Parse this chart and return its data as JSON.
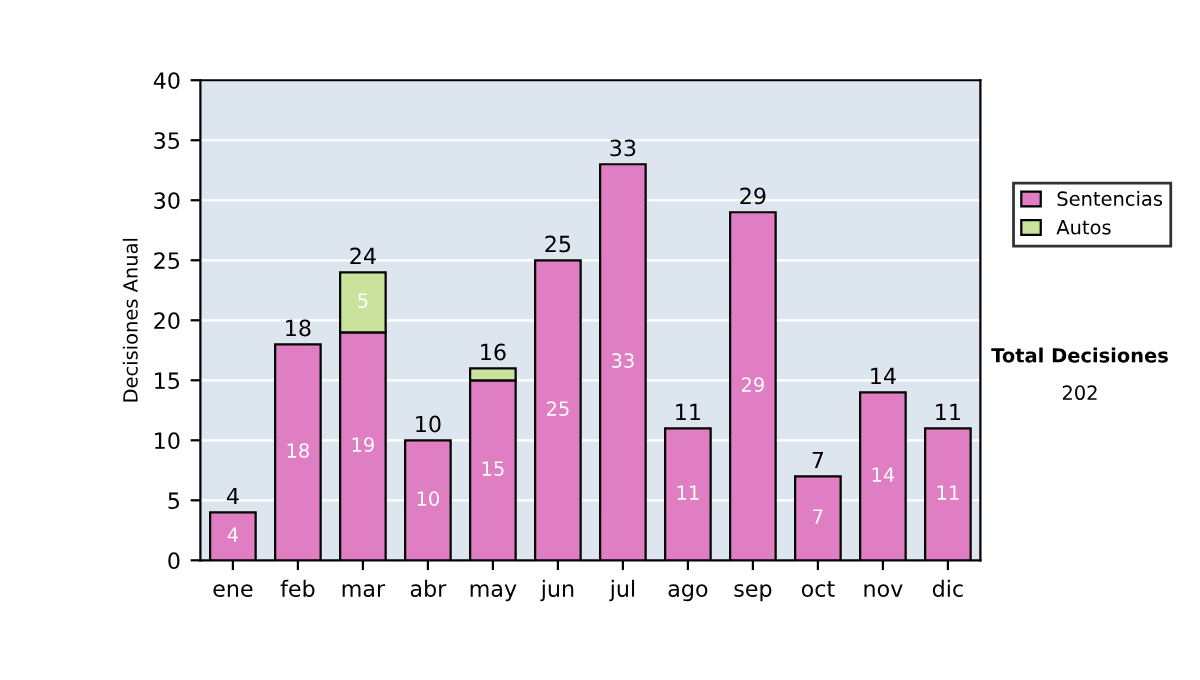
{
  "chart_data": {
    "type": "bar",
    "stacked": true,
    "ylabel": "Decisiones Anual",
    "categories": [
      "ene",
      "feb",
      "mar",
      "abr",
      "may",
      "jun",
      "jul",
      "ago",
      "sep",
      "oct",
      "nov",
      "dic"
    ],
    "series": [
      {
        "name": "Sentencias",
        "color": "#df7ec2",
        "values": [
          4,
          18,
          19,
          10,
          15,
          25,
          33,
          11,
          29,
          7,
          14,
          11
        ]
      },
      {
        "name": "Autos",
        "color": "#c9e39c",
        "values": [
          null,
          null,
          5,
          null,
          1,
          null,
          null,
          null,
          null,
          null,
          null,
          null
        ],
        "value_labels": [
          null,
          null,
          "5",
          null,
          null,
          null,
          null,
          null,
          null,
          null,
          null,
          null
        ]
      }
    ],
    "totals": [
      "4",
      "18",
      "24",
      "10",
      "16",
      "25",
      "33",
      "11",
      "29",
      "7",
      "14",
      "11"
    ],
    "data_labels": true,
    "ylim": [
      0,
      40
    ],
    "yticks": [
      0,
      5,
      10,
      15,
      20,
      25,
      30,
      35,
      40
    ],
    "grid": "y",
    "legend": "right",
    "annotations": [
      "Total Decisiones",
      "202"
    ]
  }
}
